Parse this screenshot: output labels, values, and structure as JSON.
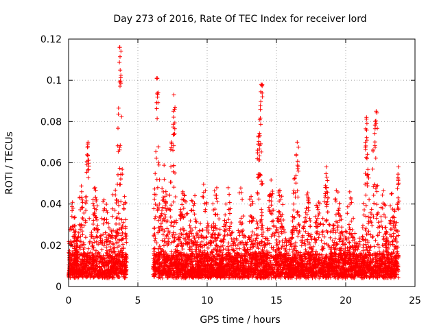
{
  "chart_data": {
    "type": "scatter",
    "title": "Day 273 of 2016, Rate Of TEC Index for receiver lord",
    "xlabel": "GPS time / hours",
    "ylabel": "ROTI / TECUs",
    "xlim": [
      0,
      25
    ],
    "ylim": [
      0,
      0.12
    ],
    "xticks": [
      0,
      5,
      10,
      15,
      20,
      25
    ],
    "yticks": [
      0,
      0.02,
      0.04,
      0.06,
      0.08,
      0.1,
      0.12
    ],
    "xtick_labels": [
      "0",
      "5",
      "10",
      "15",
      "20",
      "25"
    ],
    "ytick_labels": [
      "0",
      "0.02",
      "0.04",
      "0.06",
      "0.08",
      "0.1",
      "0.12"
    ],
    "grid": true,
    "marker": "+",
    "color": "#ff0000",
    "data_gap_hours": [
      4.2,
      6.1
    ],
    "time_span_hours": [
      0,
      23.8
    ],
    "notable_peaks": [
      {
        "x": 1.4,
        "y": 0.07
      },
      {
        "x": 3.7,
        "y": 0.116
      },
      {
        "x": 6.4,
        "y": 0.101
      },
      {
        "x": 7.6,
        "y": 0.093
      },
      {
        "x": 13.7,
        "y": 0.073
      },
      {
        "x": 13.9,
        "y": 0.098
      },
      {
        "x": 16.5,
        "y": 0.07
      },
      {
        "x": 18.6,
        "y": 0.058
      },
      {
        "x": 21.5,
        "y": 0.082
      },
      {
        "x": 22.2,
        "y": 0.085
      },
      {
        "x": 23.8,
        "y": 0.058
      }
    ]
  }
}
